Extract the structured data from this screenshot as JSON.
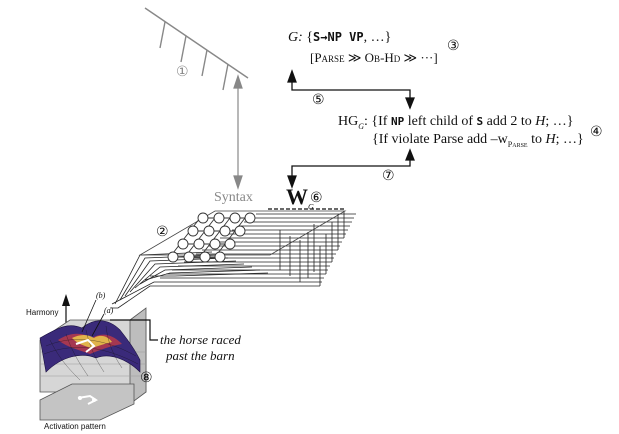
{
  "labels": {
    "syntax": "Syntax",
    "n1": "①",
    "n2": "②",
    "n3": "③",
    "n4": "④",
    "n5": "⑤",
    "n6": "⑥",
    "n7": "⑦",
    "n8": "⑧"
  },
  "grammar": {
    "g_label": "G:",
    "rule_open": "{",
    "rule": "S→NP VP",
    "rule_close": ", …}",
    "ranking": "[Parse ≫ Ob-Hd ≫ ···]"
  },
  "hg": {
    "label": "HG",
    "sub": "G",
    "line1_pre": "{If ",
    "line1_np": "NP",
    "line1_mid": " left child of ",
    "line1_s": "S",
    "line1_post": "  add 2 to ",
    "line1_h": "H",
    "line1_end": "; …}",
    "line2_pre": "{If violate  Parse add –w",
    "line2_sub": "Parse",
    "line2_mid": " to ",
    "line2_h": "H",
    "line2_end": "; …}"
  },
  "weights": {
    "symbol": "W",
    "sub": "G"
  },
  "surface": {
    "harmony": "Harmony",
    "activation": "Activation pattern",
    "b": "(b)",
    "a": "(a)"
  },
  "sentence": {
    "line1": "the horse raced",
    "line2": "past the barn"
  }
}
